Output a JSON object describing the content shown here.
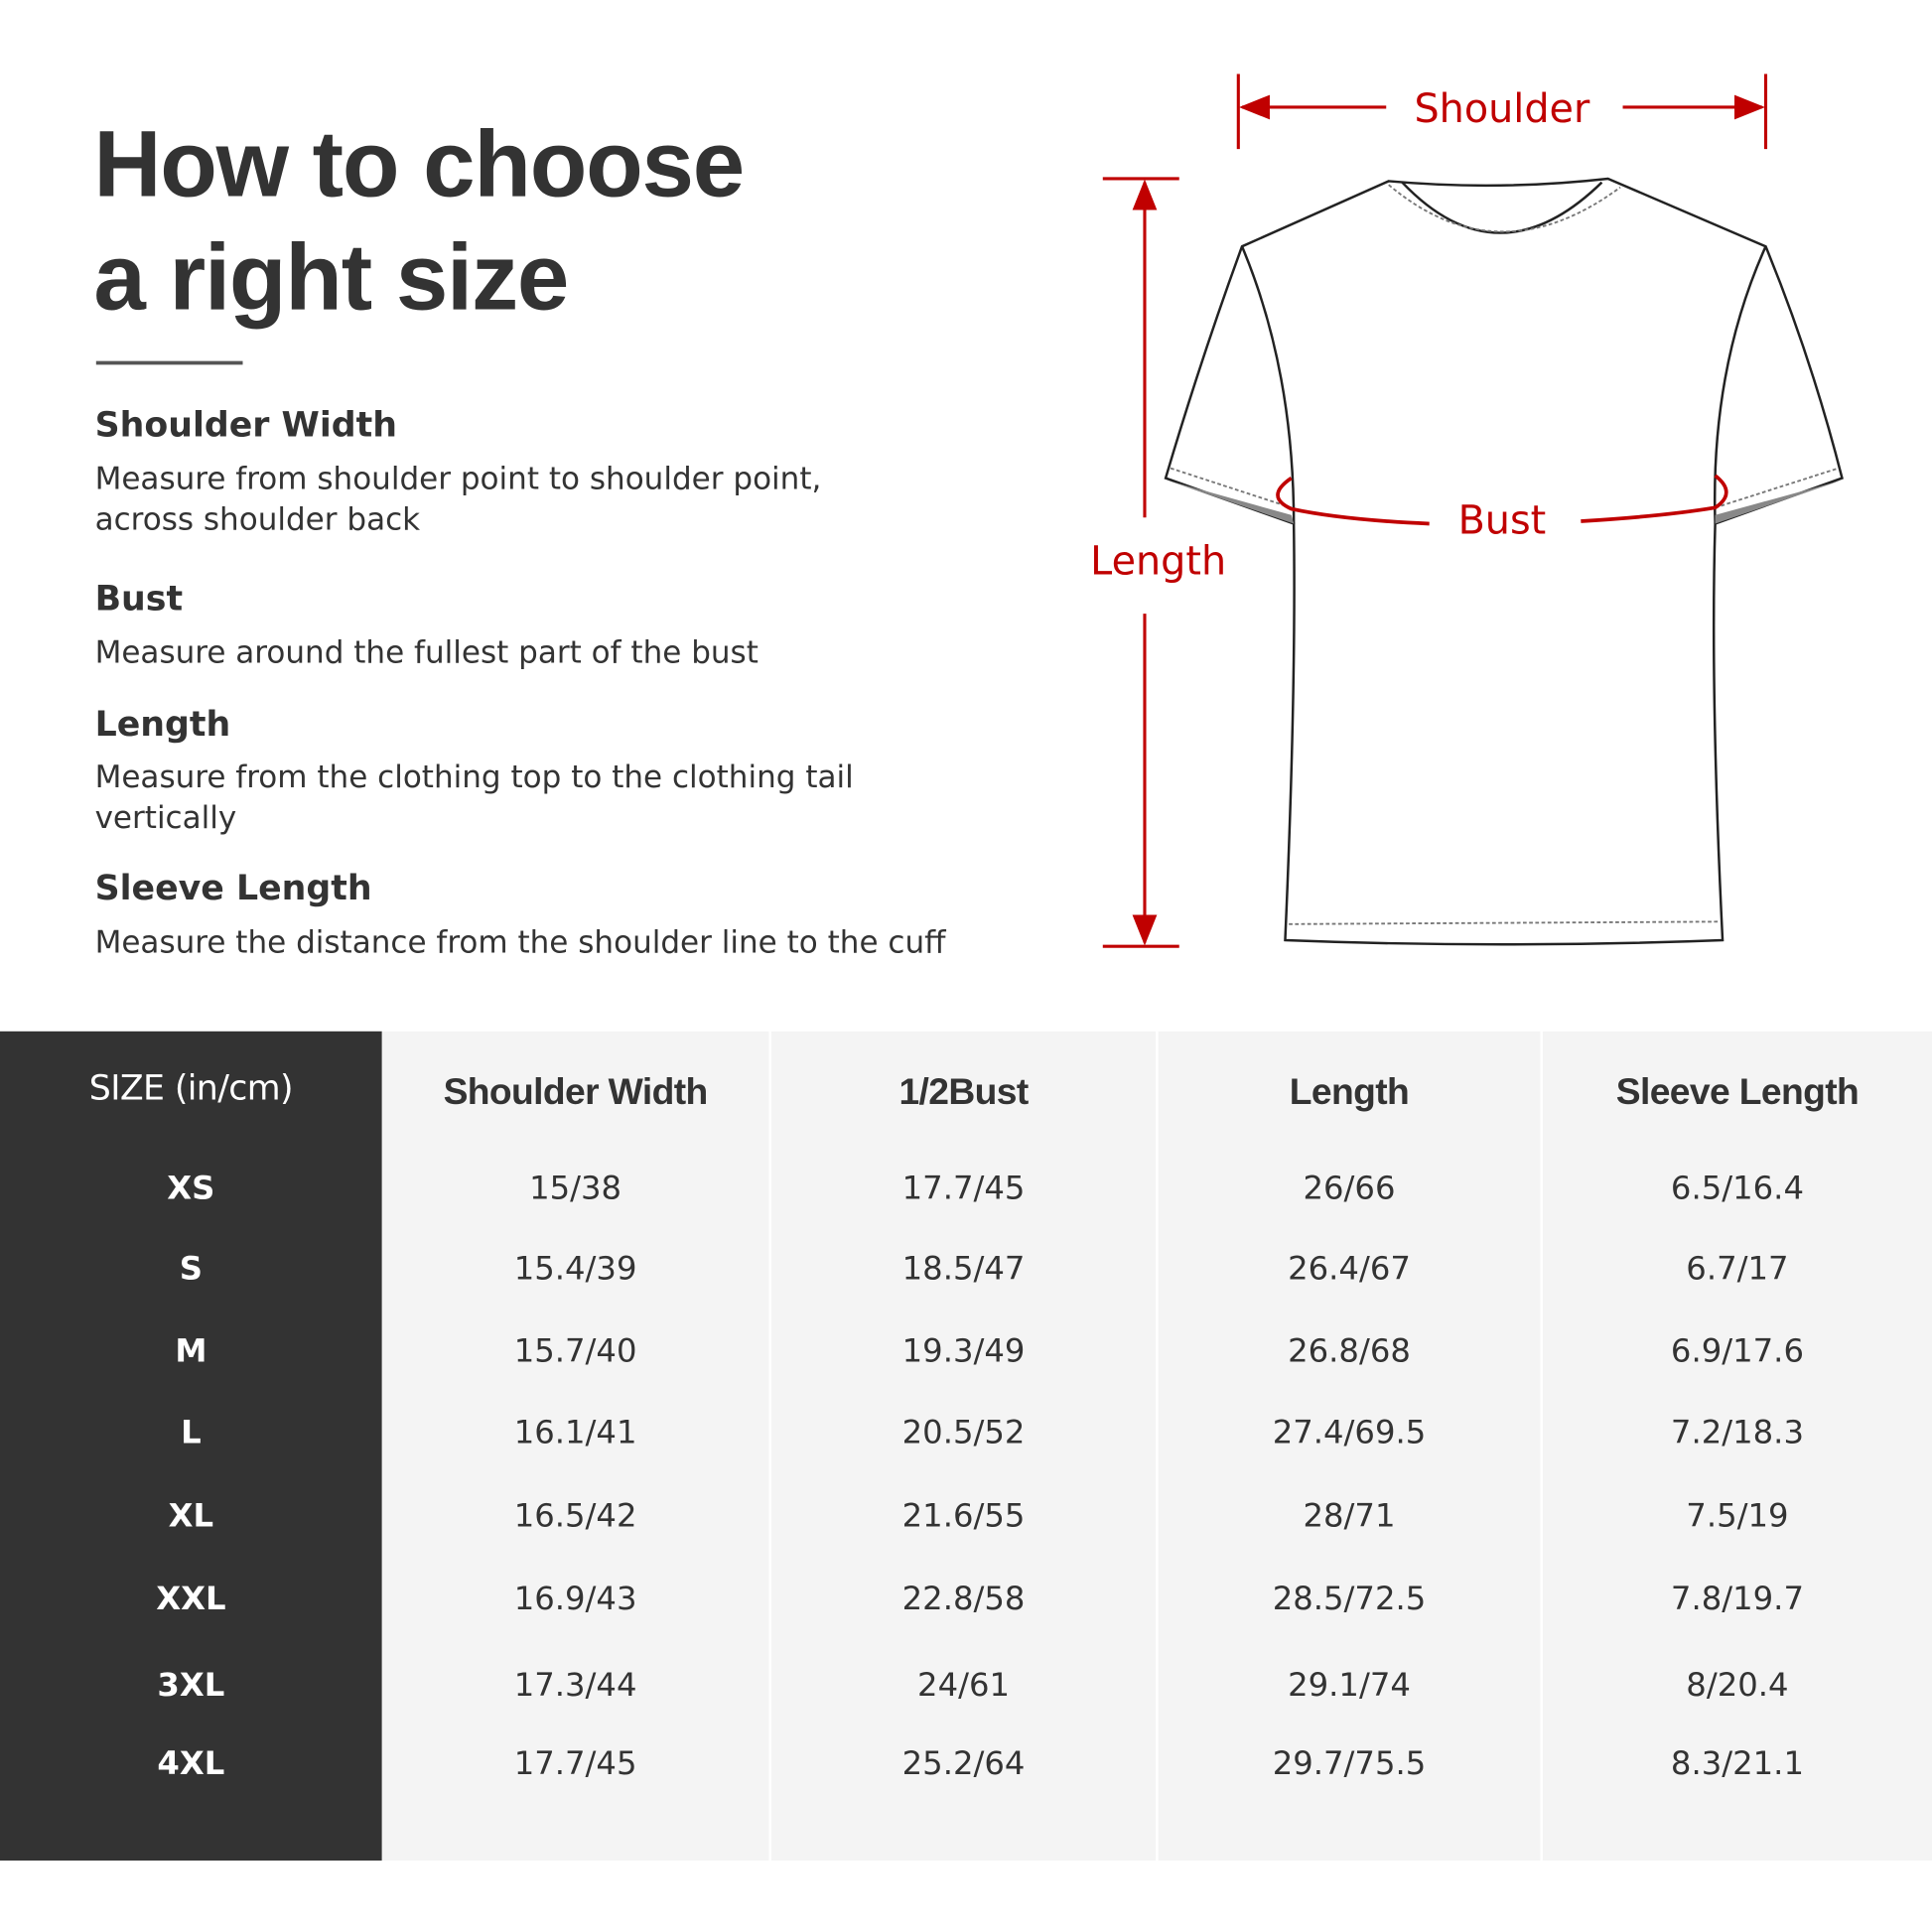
{
  "title": {
    "line1": "How to choose",
    "line2": "a right size"
  },
  "guide": [
    {
      "heading": "Shoulder Width",
      "desc_lines": [
        "Measure from shoulder point to shoulder point,",
        "across shoulder back"
      ]
    },
    {
      "heading": "Bust",
      "desc_lines": [
        "Measure around the fullest part of the bust"
      ]
    },
    {
      "heading": "Length",
      "desc_lines": [
        "Measure from the clothing top to the clothing tail",
        "vertically"
      ]
    },
    {
      "heading": "Sleeve Length",
      "desc_lines": [
        "Measure the distance from the shoulder line to the cuff"
      ]
    }
  ],
  "diagram": {
    "shoulder_label": "Shoulder",
    "bust_label": "Bust",
    "length_label": "Length",
    "accent_color": "#c00000"
  },
  "table": {
    "headers": [
      "SIZE  (in/cm)",
      "Shoulder Width",
      "1/2Bust",
      "Length",
      "Sleeve Length"
    ],
    "rows": [
      [
        "XS",
        "15/38",
        "17.7/45",
        "26/66",
        "6.5/16.4"
      ],
      [
        "S",
        "15.4/39",
        "18.5/47",
        "26.4/67",
        "6.7/17"
      ],
      [
        "M",
        "15.7/40",
        "19.3/49",
        "26.8/68",
        "6.9/17.6"
      ],
      [
        "L",
        "16.1/41",
        "20.5/52",
        "27.4/69.5",
        "7.2/18.3"
      ],
      [
        "XL",
        "16.5/42",
        "21.6/55",
        "28/71",
        "7.5/19"
      ],
      [
        "XXL",
        "16.9/43",
        "22.8/58",
        "28.5/72.5",
        "7.8/19.7"
      ],
      [
        "3XL",
        "17.3/44",
        "24/61",
        "29.1/74",
        "8/20.4"
      ],
      [
        "4XL",
        "17.7/45",
        "25.2/64",
        "29.7/75.5",
        "8.3/21.1"
      ]
    ]
  }
}
